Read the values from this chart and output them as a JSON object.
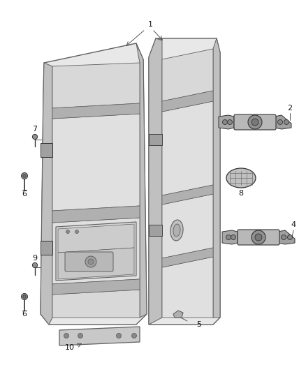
{
  "bg_color": "#ffffff",
  "lc": "#606060",
  "lc_dark": "#333333",
  "lc_light": "#aaaaaa",
  "fc_door": "#e8e8e8",
  "fc_inner": "#d8d8d8",
  "fc_edge": "#c0c0c0",
  "fc_dark": "#b0b0b0",
  "figsize": [
    4.38,
    5.33
  ],
  "dpi": 100
}
